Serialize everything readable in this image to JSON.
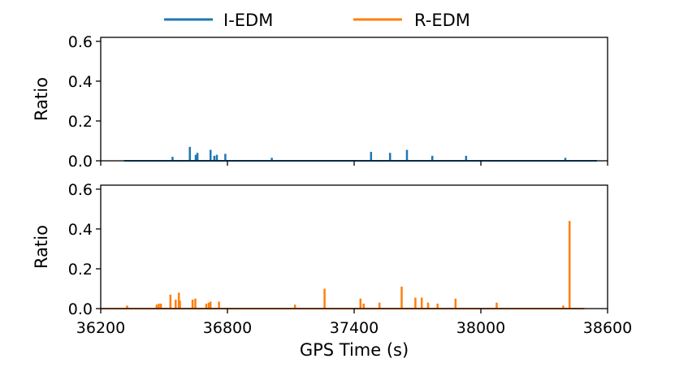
{
  "chart_data": {
    "type": "line",
    "legend": {
      "placement": "top-center",
      "entries": [
        {
          "label": "I-EDM",
          "color": "#1f77b4"
        },
        {
          "label": "R-EDM",
          "color": "#ff7f0e"
        }
      ]
    },
    "xlabel": "GPS Time (s)",
    "xlim": [
      36200,
      38600
    ],
    "xticks": [
      36200,
      36800,
      37400,
      38000,
      38600
    ],
    "xtick_labels": [
      "36200",
      "36800",
      "37400",
      "38000",
      "38600"
    ],
    "shared_x": true,
    "grid": false,
    "panels": [
      {
        "name": "I-EDM",
        "color": "#1f77b4",
        "ylabel": "Ratio",
        "ylim": [
          0,
          0.62
        ],
        "yticks": [
          0.0,
          0.2,
          0.4,
          0.6
        ],
        "ytick_labels": [
          "0.0",
          "0.2",
          "0.4",
          "0.6"
        ],
        "baseline_x": [
          36310,
          38550
        ],
        "spikes": [
          {
            "x": 36540,
            "y": 0.02
          },
          {
            "x": 36622,
            "y": 0.07
          },
          {
            "x": 36650,
            "y": 0.03
          },
          {
            "x": 36658,
            "y": 0.04
          },
          {
            "x": 36720,
            "y": 0.055
          },
          {
            "x": 36738,
            "y": 0.025
          },
          {
            "x": 36750,
            "y": 0.03
          },
          {
            "x": 36790,
            "y": 0.035
          },
          {
            "x": 37010,
            "y": 0.015
          },
          {
            "x": 37480,
            "y": 0.045
          },
          {
            "x": 37570,
            "y": 0.04
          },
          {
            "x": 37650,
            "y": 0.055
          },
          {
            "x": 37770,
            "y": 0.025
          },
          {
            "x": 37930,
            "y": 0.025
          },
          {
            "x": 38400,
            "y": 0.015
          }
        ]
      },
      {
        "name": "R-EDM",
        "color": "#ff7f0e",
        "ylabel": "Ratio",
        "ylim": [
          0,
          0.62
        ],
        "yticks": [
          0.0,
          0.2,
          0.4,
          0.6
        ],
        "ytick_labels": [
          "0.0",
          "0.2",
          "0.4",
          "0.6"
        ],
        "baseline_x": [
          36200,
          38490
        ],
        "spikes": [
          {
            "x": 36325,
            "y": 0.015
          },
          {
            "x": 36465,
            "y": 0.02
          },
          {
            "x": 36475,
            "y": 0.025
          },
          {
            "x": 36485,
            "y": 0.025
          },
          {
            "x": 36530,
            "y": 0.07
          },
          {
            "x": 36555,
            "y": 0.045
          },
          {
            "x": 36570,
            "y": 0.08
          },
          {
            "x": 36575,
            "y": 0.04
          },
          {
            "x": 36635,
            "y": 0.045
          },
          {
            "x": 36648,
            "y": 0.05
          },
          {
            "x": 36700,
            "y": 0.025
          },
          {
            "x": 36712,
            "y": 0.03
          },
          {
            "x": 36720,
            "y": 0.035
          },
          {
            "x": 36760,
            "y": 0.035
          },
          {
            "x": 37120,
            "y": 0.02
          },
          {
            "x": 37260,
            "y": 0.1
          },
          {
            "x": 37430,
            "y": 0.05
          },
          {
            "x": 37445,
            "y": 0.025
          },
          {
            "x": 37520,
            "y": 0.03
          },
          {
            "x": 37625,
            "y": 0.11
          },
          {
            "x": 37690,
            "y": 0.055
          },
          {
            "x": 37720,
            "y": 0.055
          },
          {
            "x": 37750,
            "y": 0.03
          },
          {
            "x": 37795,
            "y": 0.025
          },
          {
            "x": 37880,
            "y": 0.05
          },
          {
            "x": 38075,
            "y": 0.03
          },
          {
            "x": 38390,
            "y": 0.015
          },
          {
            "x": 38420,
            "y": 0.44
          }
        ]
      }
    ]
  }
}
